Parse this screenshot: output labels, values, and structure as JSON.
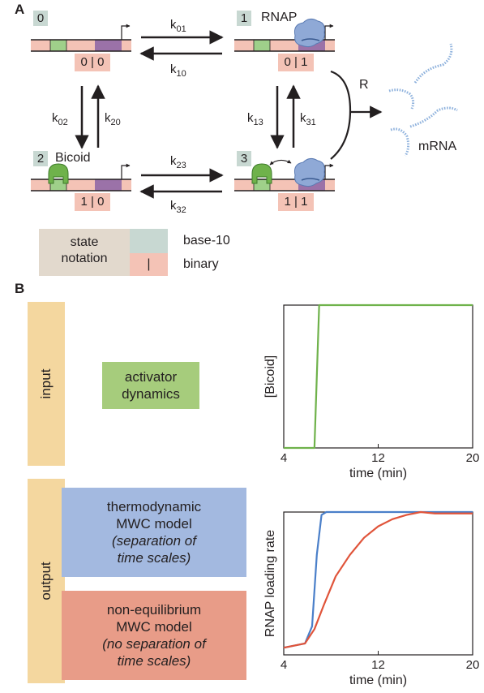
{
  "panelA": {
    "letter": "A",
    "states": [
      {
        "num": "0",
        "binary": "0 | 0"
      },
      {
        "num": "1",
        "binary": "0 | 1",
        "label": "RNAP"
      },
      {
        "num": "2",
        "binary": "1 | 0",
        "label": "Bicoid"
      },
      {
        "num": "3",
        "binary": "1 | 1"
      }
    ],
    "rates": {
      "k01": {
        "k": "k",
        "sub": "01"
      },
      "k10": {
        "k": "k",
        "sub": "10"
      },
      "k02": {
        "k": "k",
        "sub": "02"
      },
      "k20": {
        "k": "k",
        "sub": "20"
      },
      "k13": {
        "k": "k",
        "sub": "13"
      },
      "k31": {
        "k": "k",
        "sub": "31"
      },
      "k23": {
        "k": "k",
        "sub": "23"
      },
      "k32": {
        "k": "k",
        "sub": "32"
      }
    },
    "R": "R",
    "mRNA": "mRNA",
    "legend": {
      "title_line1": "state",
      "title_line2": "notation",
      "base10": "base-10",
      "binary": "binary",
      "binary_symbol": "|"
    },
    "colors": {
      "dna": "#f4c3b6",
      "bicoid_site": "#9fd08a",
      "promoter": "#9b72a8",
      "rnap": "#8fa9d6",
      "mrna": "#8fb2dd",
      "base10": "#c8d8d2"
    }
  },
  "panelB": {
    "letter": "B",
    "input_label": "input",
    "output_label": "output",
    "activator_box": {
      "line1": "activator",
      "line2": "dynamics",
      "color": "#a6cc7c"
    },
    "thermo_box": {
      "line1": "thermodynamic",
      "line2": "MWC model",
      "line3": "(separation of",
      "line4": "time scales)",
      "color": "#a3b9e0"
    },
    "noneq_box": {
      "line1": "non-equilibrium",
      "line2": "MWC model",
      "line3": "(no separation of",
      "line4": "time scales)",
      "color": "#e89c88"
    }
  },
  "chart_data": [
    {
      "type": "line",
      "ylabel": "[Bicoid]",
      "xlabel": "time (min)",
      "xticks": [
        "4",
        "12",
        "20"
      ],
      "xlim": [
        4,
        20
      ],
      "ylim": [
        0,
        1
      ],
      "series": [
        {
          "color": "#6fb24b",
          "x": [
            4,
            6.6,
            7.0,
            20
          ],
          "y": [
            0,
            0,
            1,
            1
          ]
        }
      ]
    },
    {
      "type": "line",
      "ylabel": "RNAP loading rate",
      "xlabel": "time (min)",
      "xticks": [
        "4",
        "12",
        "20"
      ],
      "xlim": [
        4,
        20
      ],
      "ylim": [
        0,
        1
      ],
      "series": [
        {
          "color": "#4a7fc9",
          "x": [
            4,
            5.8,
            6.4,
            6.8,
            7.2,
            7.6,
            20
          ],
          "y": [
            0.05,
            0.08,
            0.2,
            0.7,
            0.98,
            1.0,
            1.0
          ]
        },
        {
          "color": "#e0543a",
          "x": [
            4,
            5.8,
            6.6,
            7.4,
            8.4,
            9.6,
            10.8,
            12.0,
            13.2,
            14.4,
            15.6,
            16.8,
            20
          ],
          "y": [
            0.05,
            0.08,
            0.18,
            0.35,
            0.55,
            0.7,
            0.82,
            0.9,
            0.95,
            0.98,
            1.0,
            0.99,
            0.99
          ]
        }
      ]
    }
  ]
}
